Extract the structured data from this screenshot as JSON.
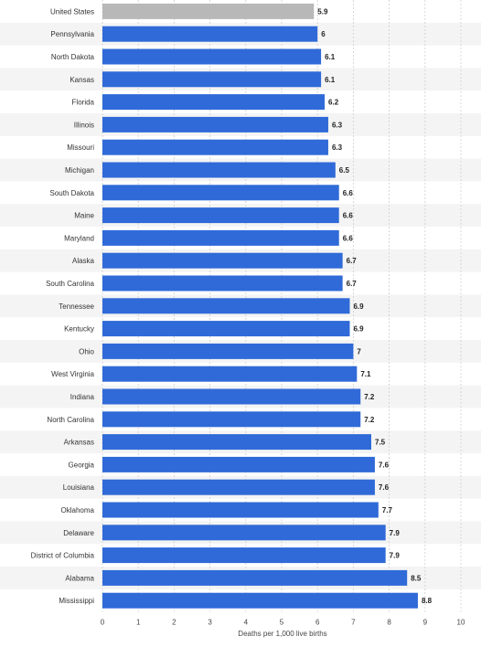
{
  "chart_data": {
    "type": "bar",
    "orientation": "horizontal",
    "categories": [
      "United States",
      "Pennsylvania",
      "North Dakota",
      "Kansas",
      "Florida",
      "Illinois",
      "Missouri",
      "Michigan",
      "South Dakota",
      "Maine",
      "Maryland",
      "Alaska",
      "South Carolina",
      "Tennessee",
      "Kentucky",
      "Ohio",
      "West Virginia",
      "Indiana",
      "North Carolina",
      "Arkansas",
      "Georgia",
      "Louisiana",
      "Oklahoma",
      "Delaware",
      "District of Columbia",
      "Alabama",
      "Mississippi"
    ],
    "values": [
      5.9,
      6,
      6.1,
      6.1,
      6.2,
      6.3,
      6.3,
      6.5,
      6.6,
      6.6,
      6.6,
      6.7,
      6.7,
      6.9,
      6.9,
      7,
      7.1,
      7.2,
      7.2,
      7.5,
      7.6,
      7.6,
      7.7,
      7.9,
      7.9,
      8.5,
      8.8
    ],
    "value_labels": [
      "5.9",
      "6",
      "6.1",
      "6.1",
      "6.2",
      "6.3",
      "6.3",
      "6.5",
      "6.6",
      "6.6",
      "6.6",
      "6.7",
      "6.7",
      "6.9",
      "6.9",
      "7",
      "7.1",
      "7.2",
      "7.2",
      "7.5",
      "7.6",
      "7.6",
      "7.7",
      "7.9",
      "7.9",
      "8.5",
      "8.8"
    ],
    "highlight_index": 0,
    "xlabel": "Deaths per 1,000 live births",
    "ylabel": "",
    "xlim": [
      0,
      10
    ],
    "x_ticks": [
      "0",
      "1",
      "2",
      "3",
      "4",
      "5",
      "6",
      "7",
      "8",
      "9",
      "10"
    ],
    "grid": true,
    "colors": {
      "bar": "#2f6ad8",
      "highlight": "#b8b8b8"
    }
  }
}
